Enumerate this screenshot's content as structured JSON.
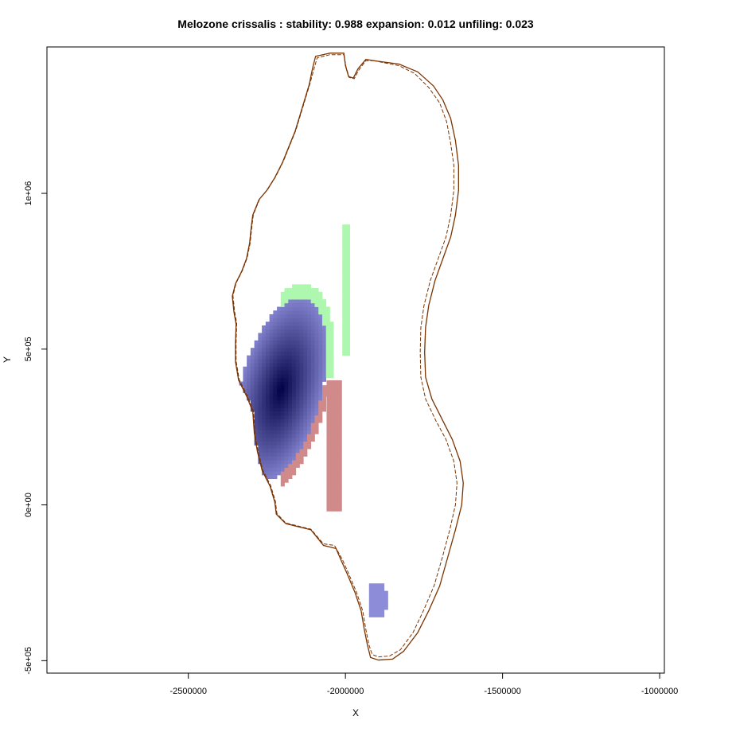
{
  "chart_data": {
    "type": "heatmap",
    "title": "Melozone crissalis : stability: 0.988 expansion: 0.012 unfiling: 0.023",
    "xlabel": "X",
    "ylabel": "Y",
    "xlim": [
      -2950000,
      -985000
    ],
    "ylim": [
      -540000,
      1470000
    ],
    "x_ticks": [
      {
        "value": -2500000,
        "label": "-2500000"
      },
      {
        "value": -2000000,
        "label": "-2000000"
      },
      {
        "value": -1500000,
        "label": "-1500000"
      },
      {
        "value": -1000000,
        "label": "-1000000"
      }
    ],
    "y_ticks": [
      {
        "value": -500000,
        "label": "-5e+05"
      },
      {
        "value": 0,
        "label": "0e+00"
      },
      {
        "value": 500000,
        "label": "5e+05"
      },
      {
        "value": 1000000,
        "label": "1e+06"
      }
    ],
    "grid": false,
    "legend": "none",
    "colors": {
      "native_range_outline": "#7a3300",
      "stability_dark": "#000045",
      "stability_light": "#8c8cd9",
      "expansion": "#aef7ae",
      "unfilling": "#d18a8a"
    },
    "series": [
      {
        "name": "",
        "kind": "solid outline",
        "points": [
          [
            -1910000,
            1426000
          ],
          [
            -1830000,
            1415000
          ],
          [
            -1770000,
            1390000
          ],
          [
            -1720000,
            1345000
          ],
          [
            -1690000,
            1300000
          ],
          [
            -1665000,
            1240000
          ],
          [
            -1650000,
            1170000
          ],
          [
            -1640000,
            1090000
          ],
          [
            -1640000,
            1010000
          ],
          [
            -1650000,
            930000
          ],
          [
            -1665000,
            860000
          ],
          [
            -1690000,
            790000
          ],
          [
            -1715000,
            720000
          ],
          [
            -1735000,
            640000
          ],
          [
            -1745000,
            570000
          ],
          [
            -1748000,
            490000
          ],
          [
            -1745000,
            410000
          ],
          [
            -1725000,
            340000
          ],
          [
            -1690000,
            270000
          ],
          [
            -1660000,
            210000
          ],
          [
            -1635000,
            140000
          ],
          [
            -1625000,
            70000
          ],
          [
            -1630000,
            0
          ],
          [
            -1650000,
            -80000
          ],
          [
            -1675000,
            -170000
          ],
          [
            -1700000,
            -260000
          ],
          [
            -1735000,
            -340000
          ],
          [
            -1770000,
            -410000
          ],
          [
            -1815000,
            -470000
          ],
          [
            -1850000,
            -495000
          ],
          [
            -1895000,
            -498000
          ],
          [
            -1920000,
            -490000
          ],
          [
            -1930000,
            -450000
          ],
          [
            -1940000,
            -400000
          ],
          [
            -1950000,
            -340000
          ],
          [
            -1970000,
            -280000
          ],
          [
            -1995000,
            -220000
          ],
          [
            -2015000,
            -175000
          ],
          [
            -2030000,
            -140000
          ],
          [
            -2070000,
            -130000
          ],
          [
            -2110000,
            -80000
          ],
          [
            -2150000,
            -70000
          ],
          [
            -2190000,
            -60000
          ],
          [
            -2220000,
            -30000
          ],
          [
            -2225000,
            10000
          ],
          [
            -2240000,
            60000
          ],
          [
            -2265000,
            110000
          ],
          [
            -2280000,
            170000
          ],
          [
            -2290000,
            230000
          ],
          [
            -2295000,
            300000
          ],
          [
            -2315000,
            350000
          ],
          [
            -2340000,
            400000
          ],
          [
            -2350000,
            460000
          ],
          [
            -2350000,
            520000
          ],
          [
            -2348000,
            580000
          ],
          [
            -2355000,
            620000
          ],
          [
            -2360000,
            670000
          ],
          [
            -2350000,
            710000
          ],
          [
            -2330000,
            750000
          ],
          [
            -2315000,
            790000
          ],
          [
            -2305000,
            840000
          ],
          [
            -2300000,
            890000
          ],
          [
            -2295000,
            930000
          ],
          [
            -2275000,
            980000
          ],
          [
            -2250000,
            1010000
          ],
          [
            -2225000,
            1050000
          ],
          [
            -2200000,
            1100000
          ],
          [
            -2180000,
            1150000
          ],
          [
            -2160000,
            1200000
          ],
          [
            -2145000,
            1250000
          ],
          [
            -2130000,
            1300000
          ],
          [
            -2115000,
            1350000
          ],
          [
            -2105000,
            1400000
          ],
          [
            -2095000,
            1440000
          ],
          [
            -2050000,
            1450000
          ],
          [
            -2005000,
            1450000
          ],
          [
            -2000000,
            1410000
          ],
          [
            -1990000,
            1375000
          ],
          [
            -1975000,
            1370000
          ],
          [
            -1960000,
            1400000
          ],
          [
            -1935000,
            1430000
          ],
          [
            -1910000,
            1426000
          ]
        ]
      },
      {
        "name": "",
        "kind": "dashed outline",
        "points": [
          [
            -1910000,
            1426000
          ],
          [
            -1830000,
            1410000
          ],
          [
            -1780000,
            1385000
          ],
          [
            -1735000,
            1340000
          ],
          [
            -1700000,
            1290000
          ],
          [
            -1678000,
            1230000
          ],
          [
            -1665000,
            1160000
          ],
          [
            -1655000,
            1090000
          ],
          [
            -1655000,
            1010000
          ],
          [
            -1665000,
            930000
          ],
          [
            -1680000,
            860000
          ],
          [
            -1705000,
            790000
          ],
          [
            -1730000,
            720000
          ],
          [
            -1750000,
            640000
          ],
          [
            -1760000,
            570000
          ],
          [
            -1762000,
            490000
          ],
          [
            -1760000,
            410000
          ],
          [
            -1745000,
            340000
          ],
          [
            -1712000,
            270000
          ],
          [
            -1680000,
            210000
          ],
          [
            -1655000,
            140000
          ],
          [
            -1645000,
            70000
          ],
          [
            -1650000,
            0
          ],
          [
            -1668000,
            -80000
          ],
          [
            -1692000,
            -170000
          ],
          [
            -1718000,
            -260000
          ],
          [
            -1752000,
            -340000
          ],
          [
            -1785000,
            -410000
          ],
          [
            -1825000,
            -465000
          ],
          [
            -1860000,
            -485000
          ],
          [
            -1895000,
            -488000
          ],
          [
            -1915000,
            -480000
          ],
          [
            -1925000,
            -450000
          ],
          [
            -1935000,
            -400000
          ],
          [
            -1945000,
            -340000
          ],
          [
            -1965000,
            -280000
          ],
          [
            -1990000,
            -220000
          ],
          [
            -2010000,
            -175000
          ],
          [
            -2035000,
            -130000
          ],
          [
            -2070000,
            -125000
          ],
          [
            -2110000,
            -78000
          ],
          [
            -2150000,
            -68000
          ],
          [
            -2190000,
            -58000
          ],
          [
            -2218000,
            -28000
          ],
          [
            -2223000,
            12000
          ],
          [
            -2238000,
            62000
          ],
          [
            -2263000,
            112000
          ],
          [
            -2278000,
            172000
          ],
          [
            -2288000,
            232000
          ],
          [
            -2293000,
            302000
          ],
          [
            -2313000,
            352000
          ],
          [
            -2338000,
            402000
          ],
          [
            -2348000,
            462000
          ],
          [
            -2348000,
            522000
          ],
          [
            -2346000,
            582000
          ],
          [
            -2353000,
            622000
          ],
          [
            -2358000,
            672000
          ],
          [
            -2348000,
            712000
          ],
          [
            -2328000,
            752000
          ],
          [
            -2313000,
            792000
          ],
          [
            -2303000,
            842000
          ],
          [
            -2298000,
            892000
          ],
          [
            -2293000,
            932000
          ],
          [
            -2273000,
            982000
          ],
          [
            -2248000,
            1012000
          ],
          [
            -2223000,
            1052000
          ],
          [
            -2198000,
            1102000
          ],
          [
            -2178000,
            1152000
          ],
          [
            -2158000,
            1202000
          ],
          [
            -2143000,
            1252000
          ],
          [
            -2128000,
            1302000
          ],
          [
            -2113000,
            1352000
          ],
          [
            -2100000,
            1400000
          ],
          [
            -2090000,
            1435000
          ],
          [
            -2050000,
            1445000
          ],
          [
            -2005000,
            1445000
          ],
          [
            -1998000,
            1405000
          ],
          [
            -1988000,
            1372000
          ],
          [
            -1972000,
            1368000
          ],
          [
            -1958000,
            1395000
          ],
          [
            -1935000,
            1426000
          ],
          [
            -1910000,
            1426000
          ]
        ]
      }
    ],
    "stability_core": {
      "center": [
        -2205000,
        370000
      ],
      "half_width": 130000,
      "half_height": 300000,
      "rotation_deg": -14
    },
    "stability_blob": {
      "x_range": [
        -1925000,
        -1870000
      ],
      "y_range": [
        -360000,
        -260000
      ]
    },
    "expansion_band": {
      "x_range": [
        -2010000,
        -1990000
      ],
      "y_range": [
        480000,
        900000
      ]
    },
    "unfilling_band": {
      "x_range": [
        -2060000,
        -2020000
      ],
      "y_range": [
        -20000,
        390000
      ]
    }
  }
}
